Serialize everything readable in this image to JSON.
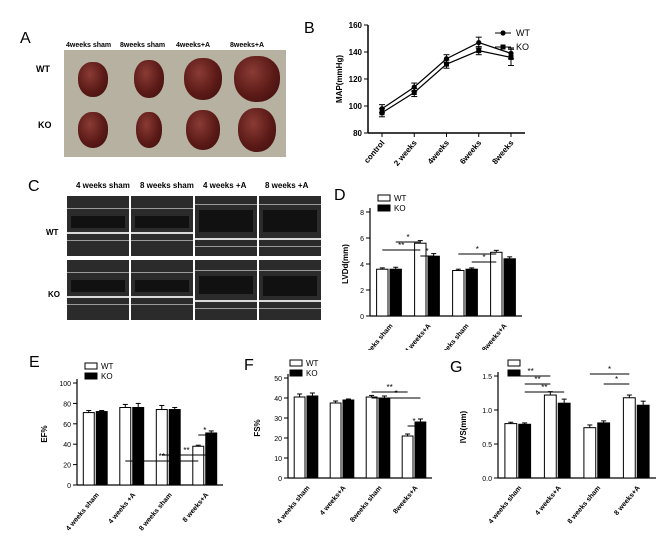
{
  "panel_a": {
    "letter": "A",
    "columns": [
      "4weeks sham",
      "8weeks sham",
      "4weeks+A",
      "8weeks+A"
    ],
    "rows": [
      "WT",
      "KO"
    ]
  },
  "panel_c": {
    "letter": "C",
    "columns": [
      "4 weeks sham",
      "8 weeks sham",
      "4 weeks +A",
      "8 weeks +A"
    ],
    "rows": [
      "WT",
      "KO"
    ]
  },
  "chart_data": [
    {
      "id": "B",
      "letter": "B",
      "type": "line",
      "categories": [
        "control",
        "2 weeks",
        "4weeks",
        "6weeks",
        "8weeks"
      ],
      "ylabel": "MAP(mmHg)",
      "ylim": [
        80,
        160
      ],
      "yticks": [
        80,
        100,
        120,
        140,
        160
      ],
      "legend": "top-right",
      "series": [
        {
          "name": "WT",
          "marker": "circle",
          "values": [
            98,
            114,
            135,
            147,
            139
          ],
          "err": [
            3,
            3,
            3,
            4,
            4
          ]
        },
        {
          "name": "KO",
          "marker": "square",
          "values": [
            95,
            110,
            131,
            141,
            136
          ],
          "err": [
            3,
            3,
            3,
            3,
            6
          ]
        }
      ]
    },
    {
      "id": "D",
      "letter": "D",
      "type": "bar",
      "categories": [
        "4 weeks sham",
        "4 weeks+A",
        "8weeks sham",
        "8weeks+A"
      ],
      "ylabel": "LVDd(mm)",
      "ylim": [
        0,
        8
      ],
      "yticks": [
        0,
        2,
        4,
        6,
        8
      ],
      "legend": "top-left",
      "series": [
        {
          "name": "WT",
          "fill": "#ffffff",
          "values": [
            3.6,
            5.6,
            3.5,
            4.9
          ],
          "err": [
            0.1,
            0.2,
            0.1,
            0.15
          ]
        },
        {
          "name": "KO",
          "fill": "#000000",
          "values": [
            3.6,
            4.6,
            3.6,
            4.4
          ],
          "err": [
            0.15,
            0.2,
            0.1,
            0.15
          ]
        }
      ],
      "annotations": [
        "**",
        "*",
        "*",
        "*",
        "*"
      ]
    },
    {
      "id": "E",
      "letter": "E",
      "type": "bar",
      "categories": [
        "4 weeks sham",
        "4 weeks +A",
        "8 weeks sham",
        "8 weeks+A"
      ],
      "ylabel": "EF%",
      "ylim": [
        0,
        100
      ],
      "yticks": [
        0,
        20,
        40,
        60,
        80,
        100
      ],
      "legend": "top-left",
      "series": [
        {
          "name": "WT",
          "fill": "#ffffff",
          "values": [
            71,
            76,
            74,
            38
          ],
          "err": [
            2,
            3,
            4,
            1
          ]
        },
        {
          "name": "KO",
          "fill": "#000000",
          "values": [
            72,
            76,
            74,
            51
          ],
          "err": [
            1,
            4,
            2,
            2
          ]
        }
      ],
      "annotations": [
        "**",
        "**",
        "*"
      ]
    },
    {
      "id": "F",
      "letter": "F",
      "type": "bar",
      "categories": [
        "4 weeks sham",
        "4 weeks+A",
        "8weeks sham",
        "8weeks+A"
      ],
      "ylabel": "FS%",
      "ylim": [
        0,
        50
      ],
      "yticks": [
        0,
        10,
        20,
        30,
        40,
        50
      ],
      "legend": "top-left",
      "series": [
        {
          "name": "WT",
          "fill": "#ffffff",
          "values": [
            40.5,
            37.5,
            40.5,
            21
          ],
          "err": [
            1.5,
            1,
            0.8,
            1
          ]
        },
        {
          "name": "KO",
          "fill": "#000000",
          "values": [
            41,
            39,
            40,
            28
          ],
          "err": [
            1.5,
            0.5,
            1,
            1.5
          ]
        }
      ],
      "annotations": [
        "*",
        "**",
        "*"
      ]
    },
    {
      "id": "G",
      "letter": "G",
      "type": "bar",
      "categories": [
        "4 weeks sham",
        "4 weeks+A",
        "8 weeks sham",
        "8 weeks+A"
      ],
      "ylabel": "IVS(mm)",
      "ylim": [
        0,
        1.5
      ],
      "yticks": [
        0.0,
        0.5,
        1.0,
        1.5
      ],
      "ytick_labels": [
        "0.0",
        "0.5",
        "1.0",
        "1.5"
      ],
      "legend": "top-left",
      "series": [
        {
          "name": "",
          "fill": "#ffffff",
          "values": [
            0.8,
            1.22,
            0.74,
            1.18
          ],
          "err": [
            0.02,
            0.05,
            0.04,
            0.04
          ]
        },
        {
          "name": "",
          "fill": "#000000",
          "values": [
            0.79,
            1.1,
            0.81,
            1.07
          ],
          "err": [
            0.02,
            0.06,
            0.03,
            0.06
          ]
        }
      ],
      "annotations": [
        "**",
        "**",
        "**",
        "*",
        "*"
      ]
    }
  ]
}
